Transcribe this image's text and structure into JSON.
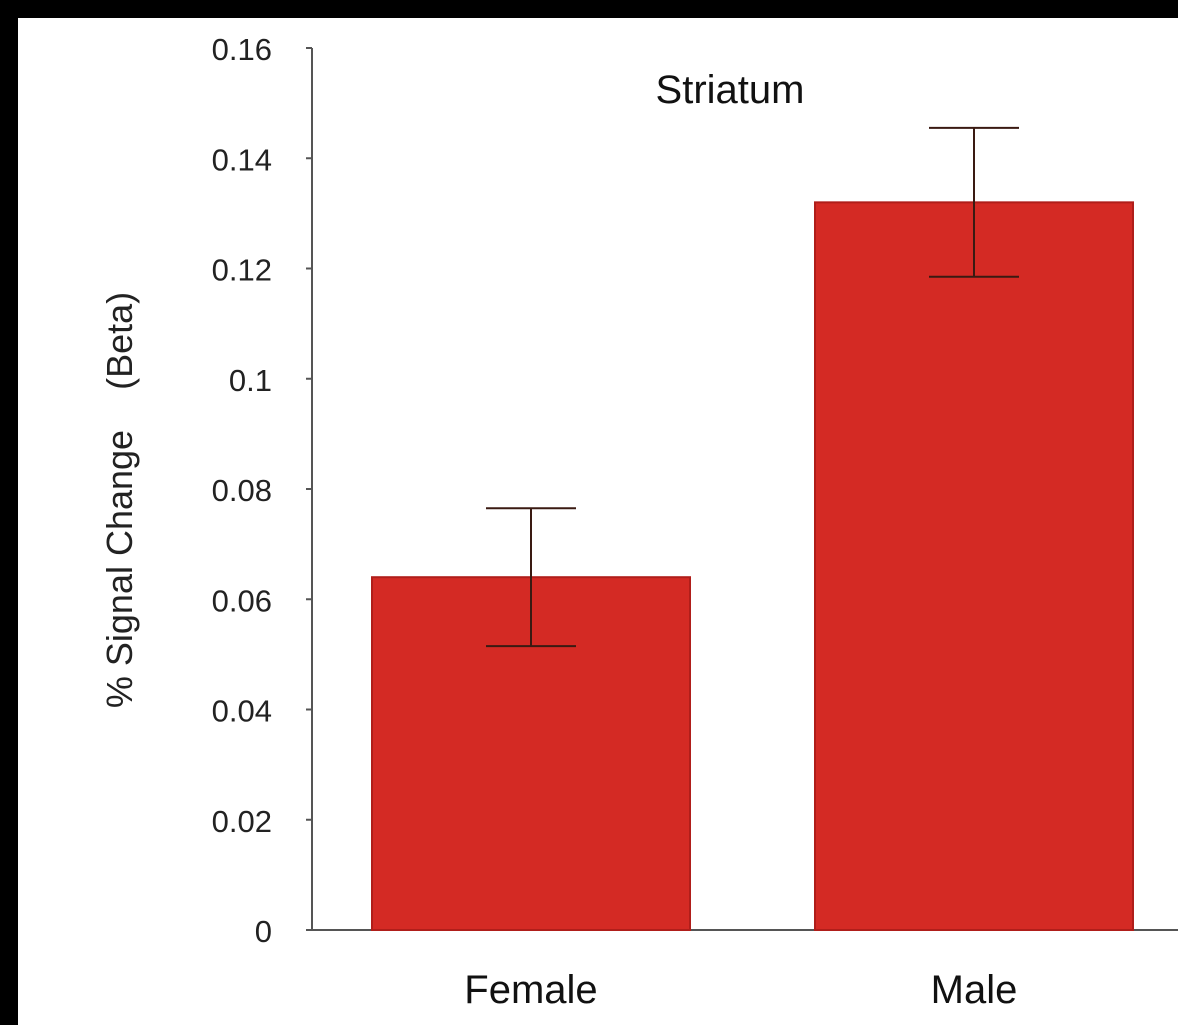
{
  "chart_data": {
    "type": "bar",
    "title": "Striatum",
    "xlabel": "",
    "ylabel": "% Signal Change    (Beta)",
    "categories": [
      "Female",
      "Male"
    ],
    "values": [
      0.064,
      0.132
    ],
    "error_upper": [
      0.0765,
      0.1455
    ],
    "error_lower": [
      0.0515,
      0.1185
    ],
    "ylim": [
      0,
      0.16
    ],
    "yticks": [
      0,
      0.02,
      0.04,
      0.06,
      0.08,
      0.1,
      0.12,
      0.14,
      0.16
    ],
    "ytick_labels": [
      "0",
      "0.02",
      "0.04",
      "0.06",
      "0.08",
      "0.1",
      "0.12",
      "0.14",
      "0.16"
    ],
    "bar_color": "#d42a24",
    "error_color": "#3a1a12",
    "axis_color": "#555555",
    "grid": false,
    "legend": "none"
  }
}
